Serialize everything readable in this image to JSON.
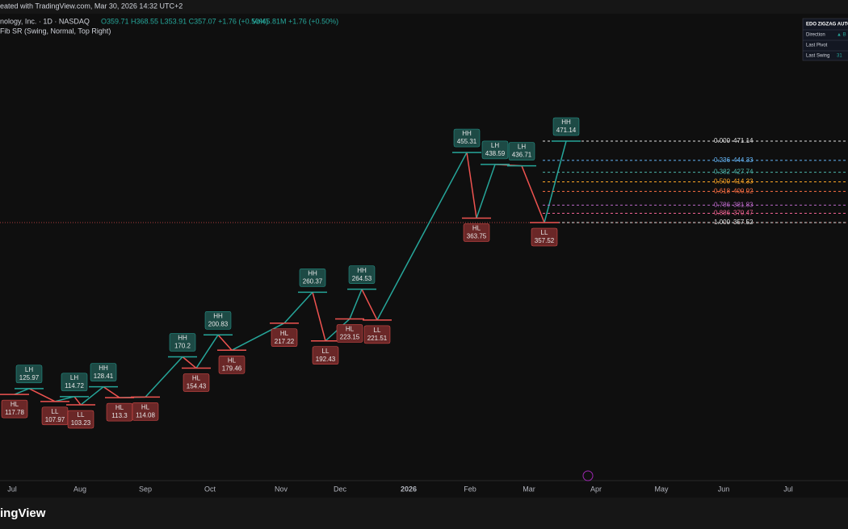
{
  "header": {
    "created": "eated with TradingView.com, Mar 30, 2026 14:32 UTC+2",
    "symbol": "nology, Inc. · 1D · NASDAQ",
    "ohlc": "O359.71 H368.55 L353.91 C357.07 +1.76 (+0.50%)",
    "volume": "Vol45.81M +1.76 (+0.50%)",
    "indicator": "Fib SR (Swing, Normal, Top Right)"
  },
  "table": {
    "title": "EDO ZIGZAG AUTO",
    "rows": [
      [
        "Direction",
        "▲ B"
      ],
      [
        "Last Pivot"
      ],
      [
        "Last Swing",
        "31"
      ]
    ]
  },
  "pivots": [
    {
      "label": "HL",
      "value": 117.78
    },
    {
      "label": "LH",
      "value": 125.97
    },
    {
      "label": "LL",
      "value": 107.97
    },
    {
      "label": "LH",
      "value": 114.72
    },
    {
      "label": "LL",
      "value": 103.23
    },
    {
      "label": "HH",
      "value": 128.41
    },
    {
      "label": "HL",
      "value": 113.3
    },
    {
      "label": "HL",
      "value": 114.08
    },
    {
      "label": "HH",
      "value": 170.2
    },
    {
      "label": "HL",
      "value": 154.43
    },
    {
      "label": "HH",
      "value": 200.83
    },
    {
      "label": "HL",
      "value": 179.46
    },
    {
      "label": "HL",
      "value": 217.22
    },
    {
      "label": "HH",
      "value": 260.37
    },
    {
      "label": "LL",
      "value": 192.43
    },
    {
      "label": "HL",
      "value": 223.15
    },
    {
      "label": "HH",
      "value": 264.53
    },
    {
      "label": "LL",
      "value": 221.51
    },
    {
      "label": "HH",
      "value": 455.31
    },
    {
      "label": "HL",
      "value": 363.75
    },
    {
      "label": "LH",
      "value": 438.59
    },
    {
      "label": "LH",
      "value": 436.71
    },
    {
      "label": "LL",
      "value": 357.52
    },
    {
      "label": "HH",
      "value": 471.14
    }
  ],
  "fib": [
    {
      "ratio": "0.000",
      "price": 471.14,
      "color": "#e0e0e0"
    },
    {
      "ratio": "0.236",
      "price": 444.33,
      "color": "#64b5f6"
    },
    {
      "ratio": "0.382",
      "price": 427.74,
      "color": "#4db6ac"
    },
    {
      "ratio": "0.500",
      "price": 414.33,
      "color": "#ffa726"
    },
    {
      "ratio": "0.618",
      "price": 400.92,
      "color": "#ff7043"
    },
    {
      "ratio": "0.786",
      "price": 381.83,
      "color": "#ba68c8"
    },
    {
      "ratio": "0.886",
      "price": 370.47,
      "color": "#f06292"
    },
    {
      "ratio": "1.000",
      "price": 357.52,
      "color": "#e0e0e0"
    }
  ],
  "months": [
    "Jul",
    "Aug",
    "Sep",
    "Oct",
    "Nov",
    "Dec",
    "2026",
    "Feb",
    "Mar",
    "Apr",
    "May",
    "Jun",
    "Jul"
  ],
  "footer": "ingView"
}
